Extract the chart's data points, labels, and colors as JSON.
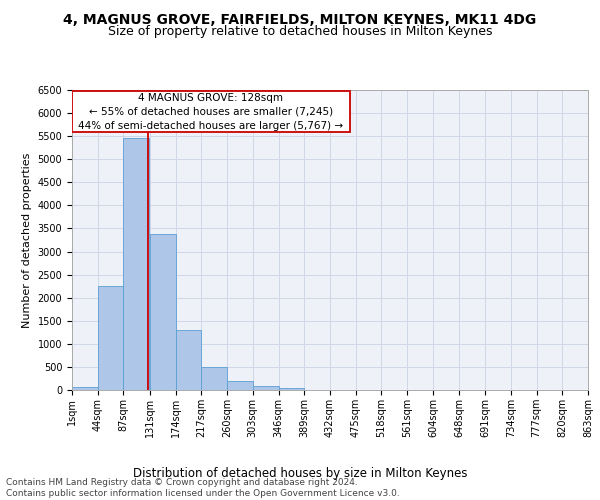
{
  "title": "4, MAGNUS GROVE, FAIRFIELDS, MILTON KEYNES, MK11 4DG",
  "subtitle": "Size of property relative to detached houses in Milton Keynes",
  "xlabel": "Distribution of detached houses by size in Milton Keynes",
  "ylabel": "Number of detached properties",
  "footer_line1": "Contains HM Land Registry data © Crown copyright and database right 2024.",
  "footer_line2": "Contains public sector information licensed under the Open Government Licence v3.0.",
  "bar_values": [
    75,
    2250,
    5450,
    3380,
    1310,
    490,
    185,
    80,
    50,
    10,
    5,
    2,
    1,
    0,
    0,
    0,
    0,
    0,
    0,
    0
  ],
  "bin_edges": [
    1,
    44,
    87,
    131,
    174,
    217,
    260,
    303,
    346,
    389,
    432,
    475,
    518,
    561,
    604,
    648,
    691,
    734,
    777,
    820,
    863
  ],
  "xtick_labels": [
    "1sqm",
    "44sqm",
    "87sqm",
    "131sqm",
    "174sqm",
    "217sqm",
    "260sqm",
    "303sqm",
    "346sqm",
    "389sqm",
    "432sqm",
    "475sqm",
    "518sqm",
    "561sqm",
    "604sqm",
    "648sqm",
    "691sqm",
    "734sqm",
    "777sqm",
    "820sqm",
    "863sqm"
  ],
  "bar_color": "#aec6e8",
  "bar_edge_color": "#5a9fd4",
  "red_line_x": 128,
  "annotation_title": "4 MAGNUS GROVE: 128sqm",
  "annotation_line2": "← 55% of detached houses are smaller (7,245)",
  "annotation_line3": "44% of semi-detached houses are larger (5,767) →",
  "annotation_box_color": "#ffffff",
  "annotation_box_edge": "#cc0000",
  "red_line_color": "#cc0000",
  "grid_color": "#d0d8e8",
  "bg_color": "#eef2f8",
  "ylim": [
    0,
    6500
  ],
  "ytick_step": 500,
  "title_fontsize": 10,
  "subtitle_fontsize": 9,
  "xlabel_fontsize": 8.5,
  "ylabel_fontsize": 8,
  "tick_fontsize": 7,
  "annot_fontsize": 7.5,
  "footer_fontsize": 6.5
}
